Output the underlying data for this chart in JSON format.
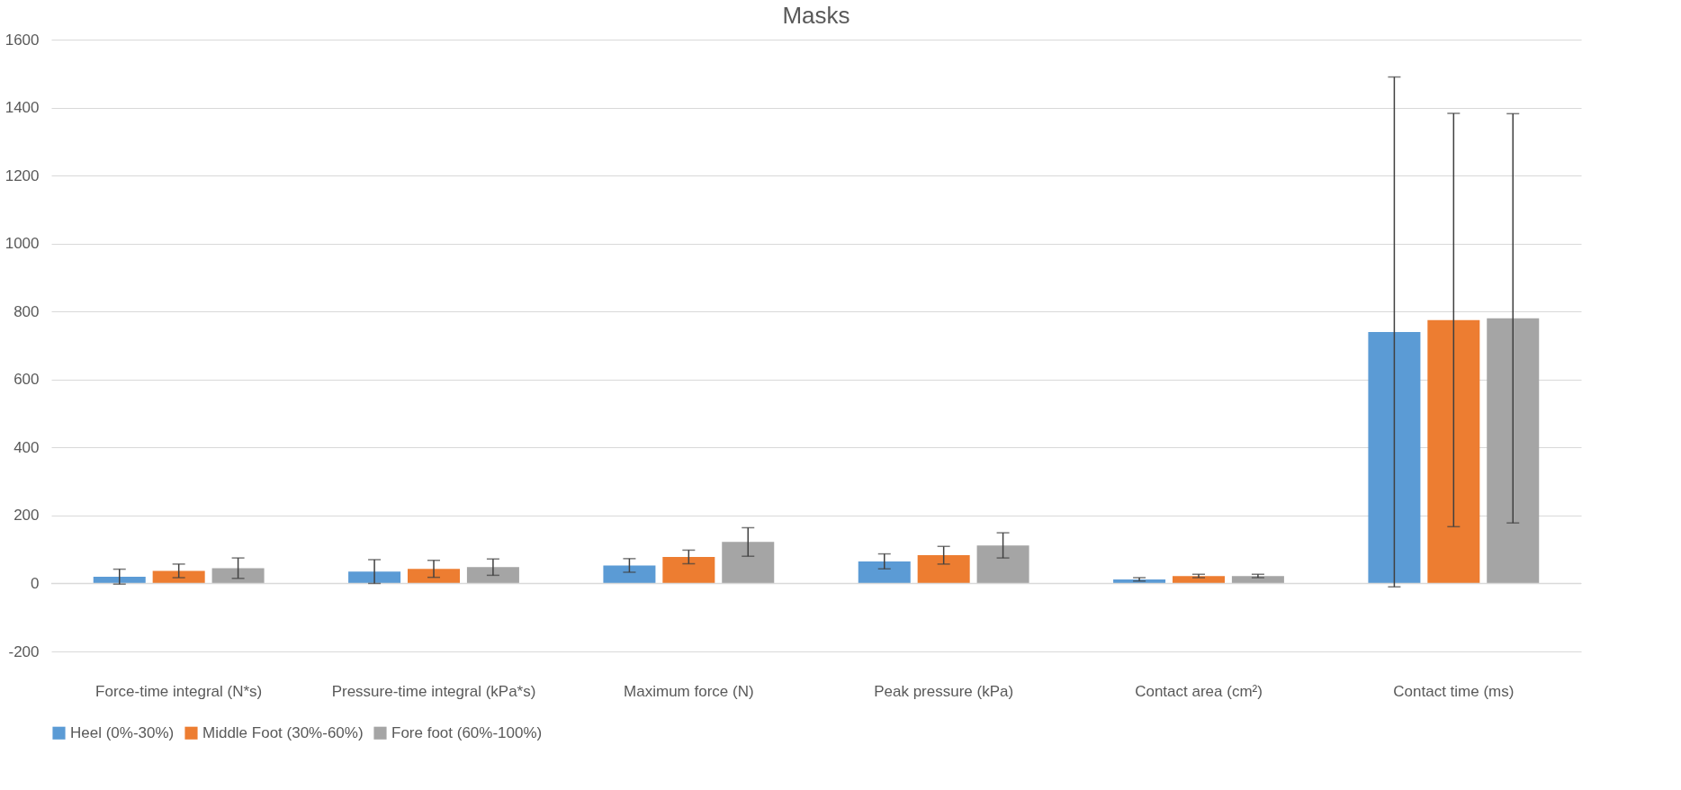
{
  "chart_data": {
    "type": "bar",
    "title": "Masks",
    "categories": [
      "Force-time integral (N*s)",
      "Pressure-time integral (kPa*s)",
      "Maximum force (N)",
      "Peak pressure (kPa)",
      "Contact area (cm²)",
      "Contact time (ms)"
    ],
    "series": [
      {
        "name": "Heel (0%-30%)",
        "color": "#5b9bd5",
        "values": [
          20,
          35,
          53,
          65,
          12,
          740
        ],
        "errors": [
          22,
          35,
          20,
          22,
          5,
          750
        ]
      },
      {
        "name": "Middle Foot (30%-60%)",
        "color": "#ed7d31",
        "values": [
          37,
          43,
          78,
          83,
          22,
          775
        ],
        "errors": [
          20,
          25,
          20,
          26,
          5,
          608
        ]
      },
      {
        "name": "Fore foot (60%-100%)",
        "color": "#a5a5a5",
        "values": [
          45,
          48,
          122,
          112,
          22,
          780
        ],
        "errors": [
          30,
          24,
          42,
          37,
          5,
          602
        ]
      }
    ],
    "ylim": [
      -200,
      1600
    ],
    "yticks": [
      -200,
      0,
      200,
      400,
      600,
      800,
      1000,
      1200,
      1400,
      1600
    ],
    "grid": "y",
    "legend": "bottom"
  }
}
